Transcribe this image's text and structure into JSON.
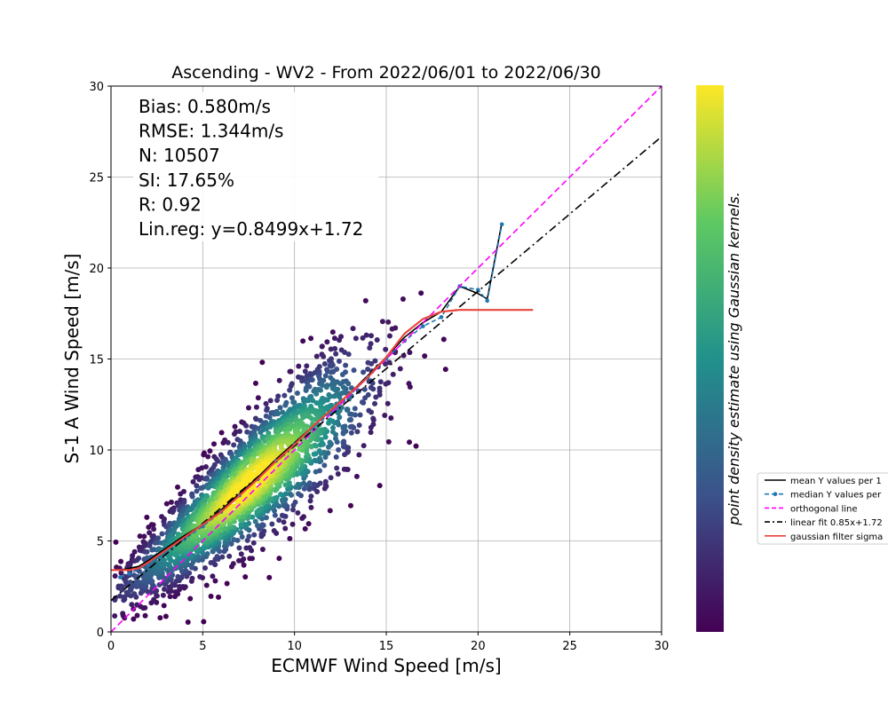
{
  "chart_data": {
    "type": "scatter",
    "title": "Ascending - WV2 - From 2022/06/01 to 2022/06/30",
    "xlabel": "ECMWF Wind Speed [m/s]",
    "ylabel": "S-1 A Wind Speed [m/s]",
    "xlim": [
      0,
      30
    ],
    "ylim": [
      0,
      30
    ],
    "xticks": [
      0,
      5,
      10,
      15,
      20,
      25,
      30
    ],
    "yticks": [
      0,
      5,
      10,
      15,
      20,
      25,
      30
    ],
    "grid": true,
    "colorbar_label": "point density estimate using Gaussian kernels.",
    "colormap": [
      "#440154",
      "#3b528b",
      "#21918c",
      "#5ec962",
      "#fde725"
    ],
    "stats": [
      "Bias: 0.580m/s",
      "RMSE: 1.344m/s",
      "N: 10507",
      "SI: 17.65%",
      "R: 0.92",
      "Lin.reg: y=0.8499x+1.72"
    ],
    "regression": {
      "slope": 0.8499,
      "intercept": 1.72
    },
    "legend_position": "right, outside plot",
    "series": [
      {
        "name": "mean Y values per 1",
        "style": "solid",
        "color": "#000000",
        "x": [
          0.5,
          1.0,
          1.5,
          2.0,
          3.0,
          4.0,
          5.0,
          6.0,
          7.0,
          8.0,
          9.0,
          10.0,
          11.0,
          12.0,
          13.0,
          14.0,
          15.0,
          16.0,
          17.0,
          18.0,
          19.0,
          20.0,
          20.5,
          21.3
        ],
        "y": [
          3.4,
          3.5,
          3.6,
          3.9,
          4.6,
          5.3,
          5.9,
          6.7,
          7.6,
          8.5,
          9.5,
          10.4,
          11.3,
          12.2,
          13.1,
          14.1,
          15.1,
          16.2,
          17.0,
          17.6,
          19.0,
          18.6,
          18.3,
          22.5
        ]
      },
      {
        "name": "median Y values per",
        "style": "dashed-markers",
        "color": "#1f77b4",
        "x": [
          0.5,
          1.0,
          2.0,
          3.0,
          4.0,
          5.0,
          6.0,
          7.0,
          8.0,
          9.0,
          10.0,
          11.0,
          12.0,
          13.0,
          14.0,
          15.0,
          16.0,
          17.0,
          18.0,
          19.0,
          20.0,
          20.5,
          21.3
        ],
        "y": [
          3.0,
          3.2,
          3.7,
          4.4,
          5.1,
          5.8,
          6.6,
          7.5,
          8.4,
          9.4,
          10.3,
          11.2,
          12.1,
          13.0,
          14.0,
          15.0,
          16.0,
          16.8,
          17.3,
          19.0,
          18.8,
          18.2,
          22.4
        ]
      },
      {
        "name": "orthogonal line",
        "style": "dashed",
        "color": "#ff00ff",
        "x": [
          0,
          30
        ],
        "y": [
          0,
          30
        ]
      },
      {
        "name": "linear fit 0.85x+1.72",
        "style": "dashdot",
        "color": "#000000",
        "x": [
          0,
          30
        ],
        "y": [
          1.72,
          27.22
        ]
      },
      {
        "name": "gaussian filter sigma",
        "style": "solid",
        "color": "#e8453c",
        "x": [
          0,
          0.5,
          1.0,
          1.5,
          2.0,
          3.0,
          4.0,
          5.0,
          6.0,
          7.0,
          8.0,
          9.0,
          10.0,
          11.0,
          12.0,
          13.0,
          14.0,
          15.0,
          16.0,
          17.0,
          18.0,
          19.0,
          20.0,
          21.0,
          22.0,
          23.0
        ],
        "y": [
          3.4,
          3.4,
          3.4,
          3.5,
          3.8,
          4.5,
          5.2,
          5.9,
          6.6,
          7.5,
          8.4,
          9.4,
          10.3,
          11.3,
          12.2,
          13.1,
          14.0,
          15.1,
          16.4,
          17.2,
          17.6,
          17.7,
          17.7,
          17.7,
          17.7,
          17.7
        ]
      }
    ]
  }
}
